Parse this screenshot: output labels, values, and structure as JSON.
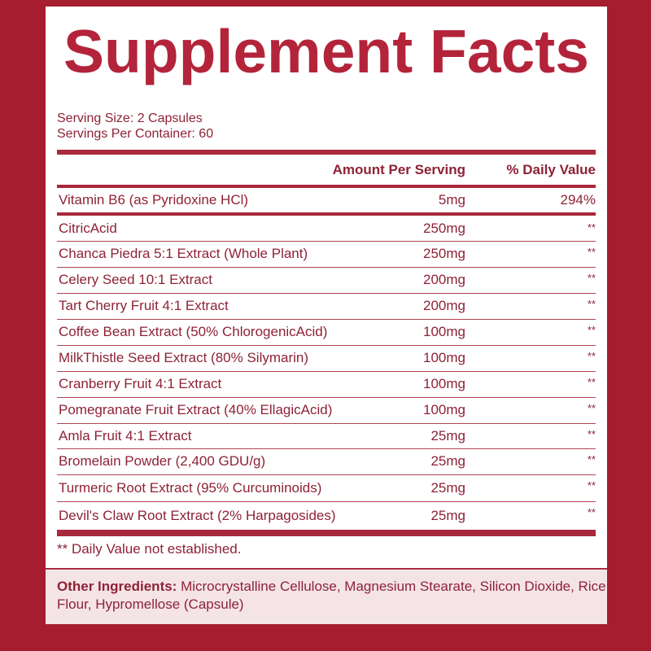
{
  "title": "Supplement Facts",
  "serving_size": "Serving Size: 2 Capsules",
  "servings_per_container": "Servings Per Container: 60",
  "header": {
    "amount": "Amount Per Serving",
    "dv": "% Daily Value"
  },
  "vitamin": {
    "name": "Vitamin B6 (as Pyridoxine HCl)",
    "amount": "5mg",
    "dv": "294%"
  },
  "ingredients": [
    {
      "name": "CitricAcid",
      "amount": "250mg",
      "dv": "**"
    },
    {
      "name": "Chanca Piedra 5:1 Extract (Whole Plant)",
      "amount": "250mg",
      "dv": "**"
    },
    {
      "name": "Celery Seed 10:1 Extract",
      "amount": "200mg",
      "dv": "**"
    },
    {
      "name": "Tart Cherry Fruit 4:1 Extract",
      "amount": "200mg",
      "dv": "**"
    },
    {
      "name": "Coffee Bean Extract (50% ChlorogenicAcid)",
      "amount": "100mg",
      "dv": "**"
    },
    {
      "name": "MilkThistle Seed Extract (80% Silymarin)",
      "amount": "100mg",
      "dv": "**"
    },
    {
      "name": "Cranberry Fruit 4:1 Extract",
      "amount": "100mg",
      "dv": "**"
    },
    {
      "name": "Pomegranate Fruit Extract (40% EllagicAcid)",
      "amount": "100mg",
      "dv": "**"
    },
    {
      "name": "Amla Fruit 4:1 Extract",
      "amount": "25mg",
      "dv": "**"
    },
    {
      "name": "Bromelain Powder (2,400 GDU/g)",
      "amount": "25mg",
      "dv": "**"
    },
    {
      "name": "Turmeric Root Extract (95% Curcuminoids)",
      "amount": "25mg",
      "dv": "**"
    },
    {
      "name": "Devil's Claw Root Extract (2% Harpagosides)",
      "amount": "25mg",
      "dv": "**"
    }
  ],
  "footnote": "** Daily Value not established.",
  "other": {
    "label": "Other Ingredients:",
    "text": " Microcrystalline Cellulose, Magnesium Stearate, Silicon Dioxide, Rice Flour, Hypromellose (Capsule)"
  },
  "colors": {
    "background": "#a51d2e",
    "title": "#b3243a",
    "text": "#8e2236"
  }
}
